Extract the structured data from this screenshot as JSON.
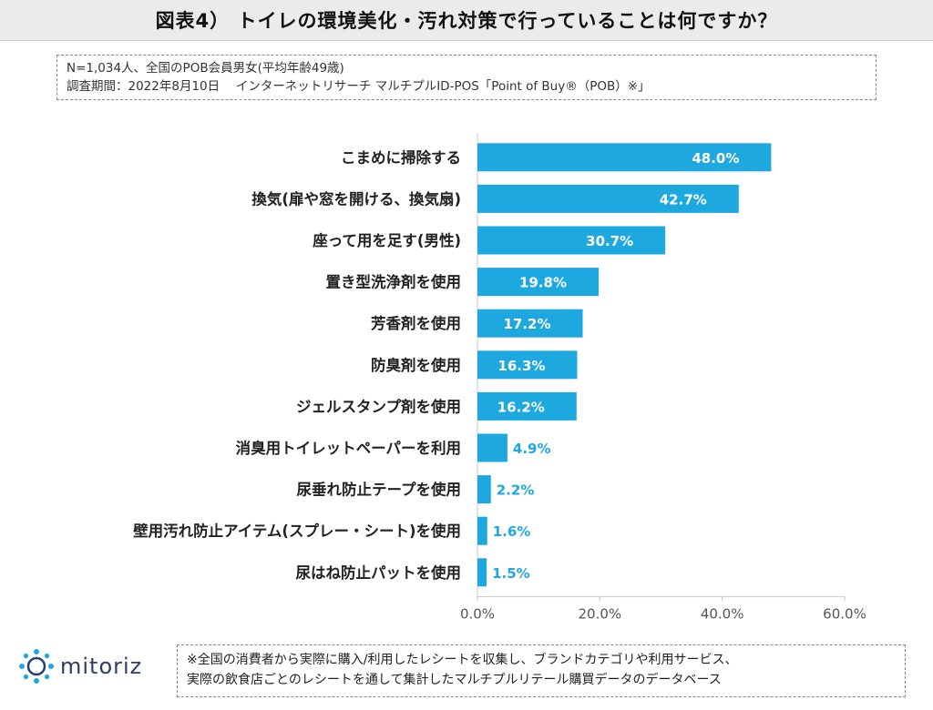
{
  "header": {
    "title": "図表4） トイレの環境美化・汚れ対策で行っていることは何ですか？"
  },
  "source": {
    "line1": "N=1,034人、全国のPOB会員男女(平均年齢49歳)",
    "line2": "調査期間：2022年8月10日　 インターネットリサーチ マルチプルID-POS「Point of Buy®（POB）※」"
  },
  "chart_data": {
    "type": "bar",
    "orientation": "horizontal",
    "categories": [
      "こまめに掃除する",
      "換気(扉や窓を開ける、換気扇)",
      "座って用を足す(男性)",
      "置き型洗浄剤を使用",
      "芳香剤を使用",
      "防臭剤を使用",
      "ジェルスタンプ剤を使用",
      "消臭用トイレットペーパーを利用",
      "尿垂れ防止テープを使用",
      "壁用汚れ防止アイテム(スプレー・シート)を使用",
      "尿はね防止パットを使用"
    ],
    "values": [
      48.0,
      42.7,
      30.7,
      19.8,
      17.2,
      16.3,
      16.2,
      4.9,
      2.2,
      1.6,
      1.5
    ],
    "data_labels": [
      "48.0%",
      "42.7%",
      "30.7%",
      "19.8%",
      "17.2%",
      "16.3%",
      "16.2%",
      "4.9%",
      "2.2%",
      "1.6%",
      "1.5%"
    ],
    "xlim": [
      0,
      60
    ],
    "x_ticks": [
      0,
      20,
      40,
      60
    ],
    "x_tick_labels": [
      "0.0%",
      "20.0%",
      "40.0%",
      "60.0%"
    ],
    "bar_color": "#1ea8e0",
    "label_inside_color": "#ffffff",
    "label_outside_color": "#1ea8e0",
    "grid": false
  },
  "footer": {
    "logo_text": "mitoriz",
    "logo_icon": "mitoriz-logo-icon",
    "note_line1": "※全国の消費者から実際に購入/利用したレシートを収集し、ブランドカテゴリや利用サービス、",
    "note_line2": "実際の飲食店ごとのレシートを通して集計したマルチプルリテール購買データのデータベース"
  }
}
